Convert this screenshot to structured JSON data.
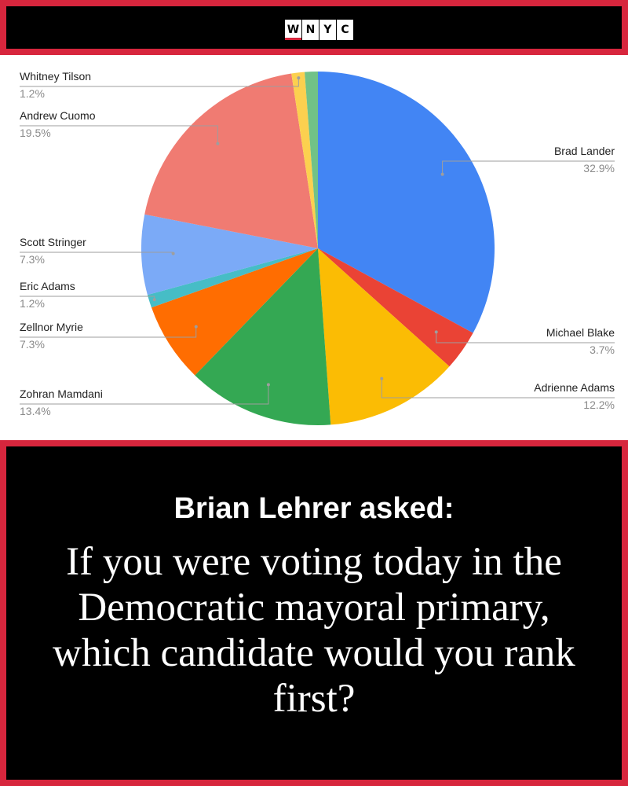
{
  "header": {
    "logo_letters": [
      "W",
      "N",
      "Y",
      "C"
    ]
  },
  "chart_data": {
    "type": "pie",
    "slices": [
      {
        "label": "Brad Lander",
        "value": 32.9,
        "value_label": "32.9%",
        "color": "#4285f4"
      },
      {
        "label": "Michael Blake",
        "value": 3.7,
        "value_label": "3.7%",
        "color": "#ea4335"
      },
      {
        "label": "Adrienne Adams",
        "value": 12.2,
        "value_label": "12.2%",
        "color": "#fbbc04"
      },
      {
        "label": "Zohran Mamdani",
        "value": 13.4,
        "value_label": "13.4%",
        "color": "#34a853"
      },
      {
        "label": "Zellnor Myrie",
        "value": 7.3,
        "value_label": "7.3%",
        "color": "#ff6d01"
      },
      {
        "label": "Eric Adams",
        "value": 1.2,
        "value_label": "1.2%",
        "color": "#46bdc6"
      },
      {
        "label": "Scott Stringer",
        "value": 7.3,
        "value_label": "7.3%",
        "color": "#7baaf7"
      },
      {
        "label": "Andrew Cuomo",
        "value": 19.5,
        "value_label": "19.5%",
        "color": "#f07b72"
      },
      {
        "label": "Whitney Tilson",
        "value": 1.2,
        "value_label": "1.2%",
        "color": "#fcd04f"
      },
      {
        "label": "",
        "value": 1.2,
        "value_label": "",
        "color": "#71c287"
      }
    ],
    "legend": "callout labels"
  },
  "footer": {
    "asked": "Brian Lehrer asked:",
    "question": "If you were voting today in the Democratic mayoral primary, which candidate would you rank first?"
  }
}
